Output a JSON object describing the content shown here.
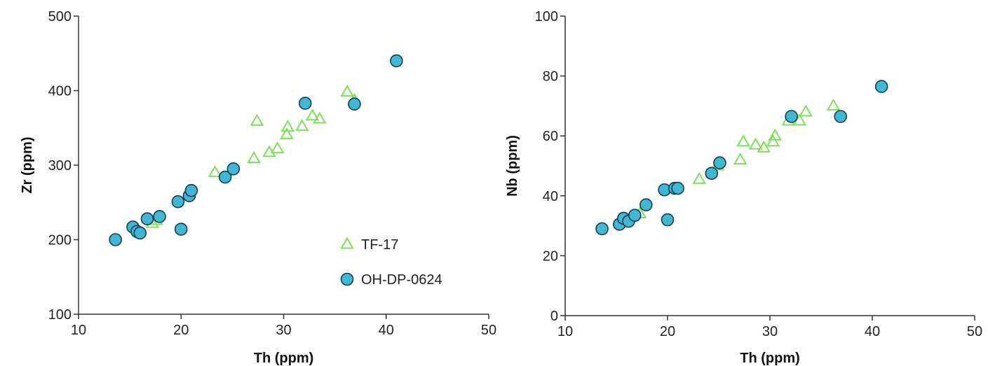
{
  "chart_data": [
    {
      "type": "scatter",
      "xlabel": "Th (ppm)",
      "ylabel": "Zr (ppm)",
      "xlim": [
        10,
        50
      ],
      "ylim": [
        100,
        500
      ],
      "xticks": [
        10,
        20,
        30,
        40,
        50
      ],
      "yticks": [
        100,
        200,
        300,
        400,
        500
      ],
      "grid": false,
      "legend_position": "lower-right",
      "series": [
        {
          "name": "TF-17",
          "marker": "triangle-open",
          "color": "#7de05a",
          "points": [
            [
              17.2,
              222
            ],
            [
              17.6,
              226
            ],
            [
              23.3,
              290
            ],
            [
              27.1,
              309
            ],
            [
              27.4,
              359
            ],
            [
              28.6,
              317
            ],
            [
              29.4,
              322
            ],
            [
              30.3,
              341
            ],
            [
              30.4,
              351
            ],
            [
              31.8,
              352
            ],
            [
              32.8,
              366
            ],
            [
              33.5,
              362
            ],
            [
              36.2,
              398
            ],
            [
              36.9,
              387
            ]
          ]
        },
        {
          "name": "OH-DP-0624",
          "marker": "circle-filled",
          "color": "#3fb8d6",
          "points": [
            [
              13.6,
              200
            ],
            [
              15.3,
              217
            ],
            [
              15.7,
              211
            ],
            [
              16.0,
              209
            ],
            [
              16.7,
              228
            ],
            [
              17.9,
              231
            ],
            [
              19.7,
              251
            ],
            [
              20.0,
              214
            ],
            [
              20.8,
              259
            ],
            [
              21.0,
              266
            ],
            [
              24.3,
              284
            ],
            [
              25.1,
              295
            ],
            [
              32.1,
              383
            ],
            [
              36.9,
              382
            ],
            [
              41.0,
              440
            ]
          ]
        }
      ]
    },
    {
      "type": "scatter",
      "xlabel": "Th (ppm)",
      "ylabel": "Nb (ppm)",
      "xlim": [
        10,
        50
      ],
      "ylim": [
        0,
        100
      ],
      "xticks": [
        10,
        20,
        30,
        40,
        50
      ],
      "yticks": [
        0,
        20,
        40,
        60,
        80,
        100
      ],
      "grid": false,
      "series": [
        {
          "name": "TF-17",
          "marker": "triangle-open",
          "color": "#7de05a",
          "points": [
            [
              16.6,
              33
            ],
            [
              17.3,
              34
            ],
            [
              23.1,
              45.5
            ],
            [
              24.9,
              50
            ],
            [
              27.1,
              52
            ],
            [
              27.4,
              58
            ],
            [
              28.6,
              57
            ],
            [
              29.4,
              56
            ],
            [
              30.3,
              58
            ],
            [
              30.5,
              60
            ],
            [
              31.8,
              65
            ],
            [
              32.9,
              65
            ],
            [
              33.5,
              68
            ],
            [
              36.2,
              70
            ]
          ]
        },
        {
          "name": "OH-DP-0624",
          "marker": "circle-filled",
          "color": "#3fb8d6",
          "points": [
            [
              13.6,
              29
            ],
            [
              15.3,
              30.5
            ],
            [
              15.7,
              32.5
            ],
            [
              16.2,
              31.5
            ],
            [
              16.8,
              33.5
            ],
            [
              17.9,
              37
            ],
            [
              19.7,
              42
            ],
            [
              20.0,
              32
            ],
            [
              20.7,
              42.5
            ],
            [
              21.0,
              42.5
            ],
            [
              24.3,
              47.5
            ],
            [
              25.1,
              51
            ],
            [
              32.1,
              66.5
            ],
            [
              36.9,
              66.5
            ],
            [
              40.9,
              76.5
            ]
          ]
        }
      ]
    }
  ]
}
